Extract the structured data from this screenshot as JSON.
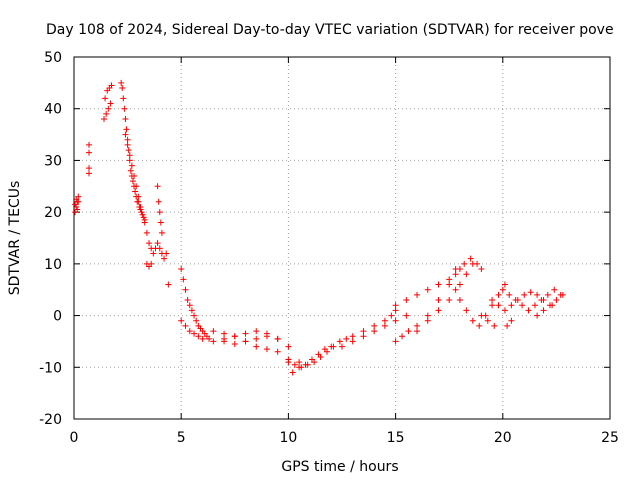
{
  "chart_data": {
    "type": "scatter",
    "title": "Day 108 of 2024, Sidereal Day-to-day VTEC variation (SDTVAR) for receiver pove",
    "xlabel": "GPS time / hours",
    "ylabel": "SDTVAR / TECUs",
    "xlim": [
      0,
      25
    ],
    "ylim": [
      -20,
      50
    ],
    "xticks": [
      0,
      5,
      10,
      15,
      20,
      25
    ],
    "xtick_labels": [
      "0",
      "5",
      "10",
      "15",
      "20",
      "25"
    ],
    "yticks": [
      -20,
      -10,
      0,
      10,
      20,
      30,
      40,
      50
    ],
    "ytick_labels": [
      "-20",
      "-10",
      "0",
      "10",
      "20",
      "30",
      "40",
      "50"
    ],
    "grid": true,
    "marker": "+",
    "color": "#ff0000",
    "series": [
      {
        "name": "SDTVAR",
        "x": [
          0.05,
          0.1,
          0.15,
          0.2,
          0.05,
          0.1,
          0.15,
          0.2,
          0.7,
          0.7,
          0.7,
          0.7,
          1.4,
          1.5,
          1.6,
          1.7,
          1.45,
          1.55,
          1.65,
          1.75,
          2.2,
          2.25,
          2.3,
          2.35,
          2.4,
          2.45,
          2.5,
          2.55,
          2.6,
          2.65,
          2.7,
          2.75,
          2.8,
          2.85,
          2.9,
          2.95,
          3.0,
          3.05,
          3.1,
          3.15,
          3.2,
          3.25,
          3.3,
          2.4,
          2.5,
          2.6,
          2.7,
          2.8,
          2.9,
          3.0,
          3.1,
          3.3,
          3.4,
          3.5,
          3.6,
          3.7,
          3.8,
          3.9,
          4.0,
          4.1,
          4.2,
          4.3,
          3.9,
          3.95,
          4.0,
          4.05,
          4.1,
          3.4,
          3.5,
          3.6,
          4.4,
          5.0,
          5.1,
          5.2,
          5.3,
          5.4,
          5.5,
          5.6,
          5.7,
          5.8,
          5.9,
          6.0,
          6.1,
          6.2,
          6.3,
          5.0,
          5.2,
          5.4,
          5.6,
          5.8,
          6.0,
          6.5,
          7.0,
          7.5,
          8.0,
          8.5,
          9.0,
          9.5,
          6.5,
          7.0,
          7.5,
          8.0,
          8.5,
          9.0,
          9.5,
          10.0,
          7.0,
          7.5,
          8.0,
          8.5,
          9.0,
          9.5,
          10.0,
          10.5,
          10.0,
          10.3,
          10.6,
          10.9,
          11.2,
          11.5,
          11.8,
          12.1,
          12.4,
          12.7,
          13.0,
          10.2,
          10.5,
          10.8,
          11.1,
          11.4,
          11.7,
          12.0,
          12.5,
          13.0,
          13.5,
          14.0,
          14.5,
          15.0,
          15.5,
          13.5,
          14.0,
          14.5,
          14.8,
          15.0,
          15.0,
          15.5,
          16.0,
          16.5,
          17.0,
          17.5,
          17.8,
          18.0,
          18.2,
          18.5,
          18.8,
          19.0,
          15.0,
          15.3,
          15.6,
          16.0,
          16.5,
          17.0,
          17.5,
          17.8,
          16.0,
          16.5,
          17.0,
          17.5,
          17.8,
          18.0,
          18.3,
          18.6,
          18.0,
          18.3,
          18.6,
          18.9,
          19.2,
          19.5,
          19.8,
          20.1,
          19.5,
          19.8,
          20.1,
          20.4,
          20.7,
          21.0,
          21.3,
          21.6,
          21.9,
          22.2,
          22.5,
          22.8,
          20.0,
          20.3,
          20.6,
          20.9,
          21.2,
          21.5,
          21.8,
          22.1,
          22.4,
          22.7,
          19.0,
          19.3,
          19.6,
          20.2,
          20.4,
          21.6,
          21.9,
          22.3
        ],
        "y": [
          20,
          21,
          22,
          23,
          21.5,
          22.5,
          20.5,
          22,
          27.5,
          28.5,
          31.5,
          33,
          38,
          39,
          40,
          41,
          42,
          43.5,
          44,
          44.5,
          45,
          44,
          42,
          40,
          38,
          36,
          34,
          32,
          30,
          28,
          27,
          26,
          25,
          24,
          23,
          22,
          22,
          21,
          20.5,
          20,
          19.5,
          19,
          18.5,
          35,
          33,
          31,
          29,
          27,
          25,
          23,
          21,
          18,
          16,
          14,
          13,
          12,
          13,
          14,
          13,
          12,
          11,
          12,
          25,
          22,
          20,
          18,
          16,
          10,
          9.5,
          10,
          6,
          9,
          7,
          5,
          3,
          2,
          1,
          0,
          -1,
          -2,
          -2.5,
          -3,
          -3.5,
          -4,
          -4.5,
          -1,
          -2,
          -3,
          -3.5,
          -4,
          -4.5,
          -5,
          -4.5,
          -4,
          -5,
          -4.5,
          -4,
          -4.5,
          -3,
          -3.5,
          -4,
          -3.5,
          -3,
          -3.5,
          -4.5,
          -6,
          -5,
          -5.5,
          -5,
          -6,
          -6.5,
          -7,
          -8.5,
          -9,
          -9,
          -9.5,
          -10,
          -9.5,
          -9,
          -8,
          -7,
          -6,
          -5,
          -4.5,
          -4,
          -11,
          -10,
          -9.5,
          -8.5,
          -7.5,
          -6.5,
          -6,
          -6,
          -5,
          -4,
          -3,
          -2,
          -1,
          0,
          -3,
          -2,
          -1,
          0,
          1,
          2,
          3,
          4,
          5,
          6,
          7,
          8,
          9,
          10,
          11,
          10,
          9,
          -5,
          -4,
          -3,
          -2,
          0,
          3,
          6,
          9,
          -3,
          -1,
          1,
          3,
          5,
          6,
          8,
          10,
          3,
          1,
          -1,
          -2,
          0,
          2,
          4,
          6,
          3,
          2,
          1,
          2,
          3,
          4,
          4.5,
          4,
          3,
          2,
          3,
          4,
          5,
          4,
          3,
          2,
          1,
          2,
          3,
          4,
          5,
          4,
          0,
          -1,
          -2,
          -2,
          -1,
          0,
          1,
          2
        ]
      }
    ]
  }
}
